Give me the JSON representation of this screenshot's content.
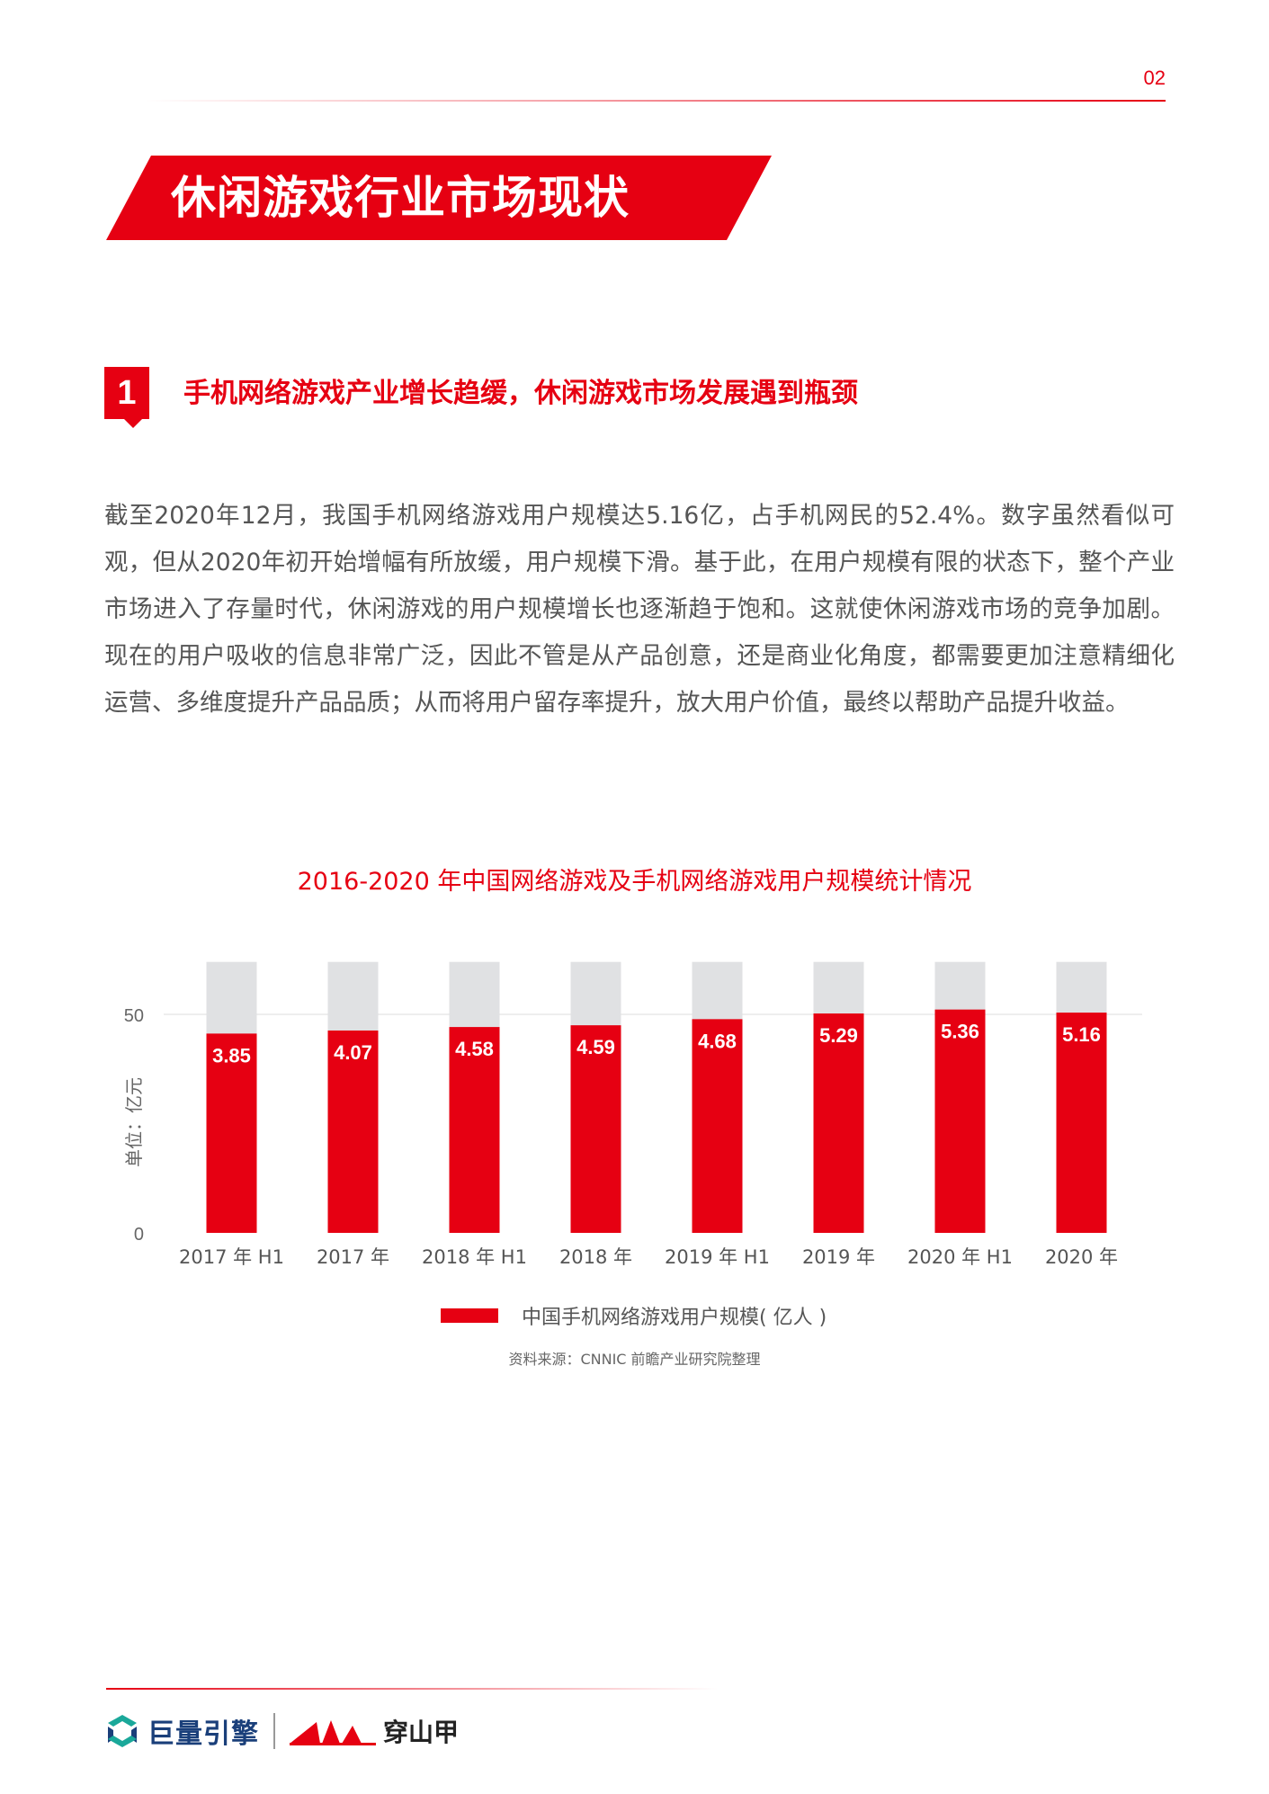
{
  "page_number": "02",
  "banner": {
    "title": "休闲游戏行业市场现状"
  },
  "section": {
    "number": "1",
    "title": "手机网络游戏产业增长趋缓，休闲游戏市场发展遇到瓶颈"
  },
  "body": {
    "paragraph": "截至2020年12月，我国手机网络游戏用户规模达5.16亿，占手机网民的52.4%。数字虽然看似可观，但从2020年初开始增幅有所放缓，用户规模下滑。基于此，在用户规模有限的状态下，整个产业市场进入了存量时代，休闲游戏的用户规模增长也逐渐趋于饱和。这就使休闲游戏市场的竞争加剧。现在的用户吸收的信息非常广泛，因此不管是从产品创意，还是商业化角度，都需要更加注意精细化运营、多维度提升产品品质；从而将用户留存率提升，放大用户价值，最终以帮助产品提升收益。"
  },
  "chart_data": {
    "type": "bar",
    "title": "2016-2020 年中国网络游戏及手机网络游戏用户规模统计情况",
    "ylabel": "单位：亿元",
    "xlabel": "",
    "categories": [
      "2017 年 H1",
      "2017 年",
      "2018 年 H1",
      "2018 年",
      "2019 年 H1",
      "2019 年",
      "2020 年 H1",
      "2020 年"
    ],
    "series": [
      {
        "name": "中国手机网络游戏用户规模( 亿人 )",
        "values": [
          3.85,
          4.07,
          4.58,
          4.59,
          4.68,
          5.29,
          5.36,
          5.16
        ],
        "color": "#e60012"
      }
    ],
    "bar_heights": [
      45.6,
      46.3,
      47.1,
      47.5,
      48.9,
      50.2,
      51.1,
      50.4
    ],
    "background_bar_value": 62,
    "yticks": [
      0,
      50
    ],
    "ylim": [
      0,
      62
    ],
    "grid": true,
    "legend_position": "bottom",
    "background_bar_color": "#e0e1e3"
  },
  "source": "资料来源：CNNIC 前瞻产业研究院整理",
  "footer": {
    "logo1_text": "巨量引擎",
    "logo2_text": "穿山甲"
  },
  "colors": {
    "accent": "#e60012",
    "logo_blue": "#1a3f7a",
    "logo_teal": "#1aa89a"
  }
}
